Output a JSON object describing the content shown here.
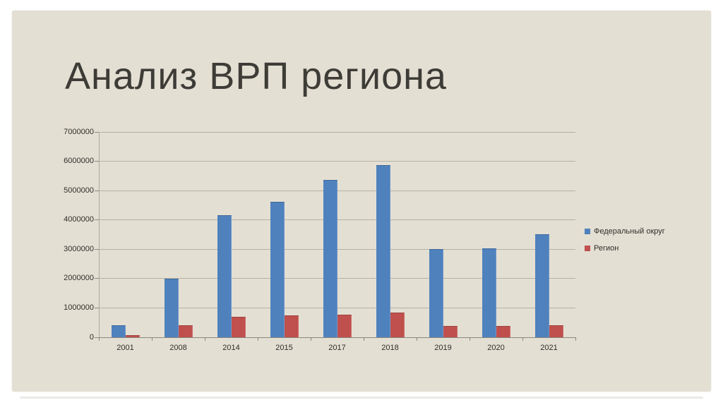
{
  "slide": {
    "title": "Анализ ВРП региона"
  },
  "chart_data": {
    "type": "bar",
    "title": "Анализ ВРП региона",
    "categories": [
      "2001",
      "2008",
      "2014",
      "2015",
      "2017",
      "2018",
      "2019",
      "2020",
      "2021"
    ],
    "series": [
      {
        "name": "Федеральный округ",
        "color": "#4f81bd",
        "values": [
          420000,
          2000000,
          4150000,
          4630000,
          5360000,
          5860000,
          3010000,
          3040000,
          3510000
        ]
      },
      {
        "name": "Регион",
        "color": "#c0504d",
        "values": [
          80000,
          400000,
          700000,
          740000,
          770000,
          850000,
          390000,
          390000,
          420000
        ]
      }
    ],
    "ylim": [
      0,
      7000000
    ],
    "yticks": [
      "0",
      "1000000",
      "2000000",
      "3000000",
      "4000000",
      "5000000",
      "6000000",
      "7000000"
    ],
    "xlabel": "",
    "ylabel": "",
    "grid": true,
    "legend_position": "right"
  },
  "colors": {
    "page_background": "#ffffff",
    "slide_background": "#e4dfd3",
    "gridline": "#b5b1a5",
    "axis": "#8a877e",
    "title_text": "#3e3c37",
    "chart_text": "#2f2e2a",
    "series_blue": "#4f81bd",
    "series_red": "#c0504d"
  }
}
